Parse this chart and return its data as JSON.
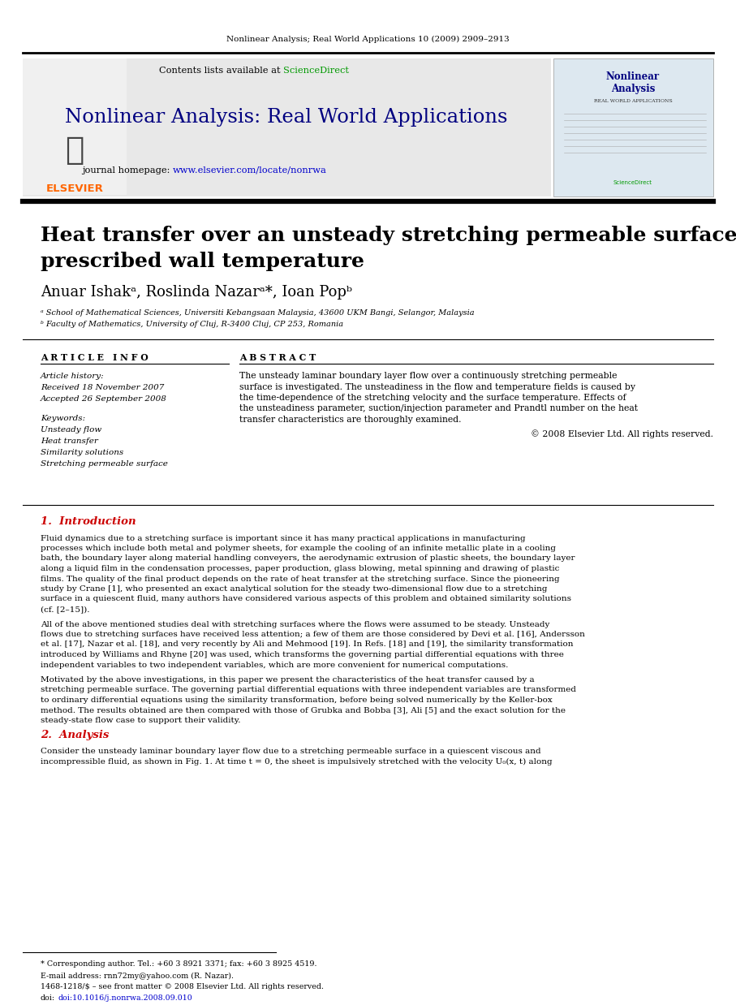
{
  "bg_color": "#ffffff",
  "header_journal": "Nonlinear Analysis; Real World Applications 10 (2009) 2909–2913",
  "journal_title": "Nonlinear Analysis: Real World Applications",
  "contents_text": "Contents lists available at ScienceDirect",
  "journal_url": "www.elsevier.com/locate/nonrwa",
  "journal_homepage_label": "journal homepage: ",
  "elsevier_color": "#ff6600",
  "sciencedirect_color": "#009900",
  "url_color": "#0000cc",
  "header_bg": "#e8e8e8",
  "paper_title_line1": "Heat transfer over an unsteady stretching permeable surface with",
  "paper_title_line2": "prescribed wall temperature",
  "authors": "Anuar Ishakᵃ, Roslinda Nazarᵃ*, Ioan Popᵇ",
  "affil_a": "ᵃ School of Mathematical Sciences, Universiti Kebangsaan Malaysia, 43600 UKM Bangi, Selangor, Malaysia",
  "affil_b": "ᵇ Faculty of Mathematics, University of Cluj, R-3400 Cluj, CP 253, Romania",
  "article_info_header": "A R T I C L E   I N F O",
  "article_history_label": "Article history:",
  "received_text": "Received 18 November 2007",
  "accepted_text": "Accepted 26 September 2008",
  "keywords_label": "Keywords:",
  "kw1": "Unsteady flow",
  "kw2": "Heat transfer",
  "kw3": "Similarity solutions",
  "kw4": "Stretching permeable surface",
  "abstract_header": "A B S T R A C T",
  "abstract_text": "The unsteady laminar boundary layer flow over a continuously stretching permeable\nsurface is investigated. The unsteadiness in the flow and temperature fields is caused by\nthe time-dependence of the stretching velocity and the surface temperature. Effects of\nthe unsteadiness parameter, suction/injection parameter and Prandtl number on the heat\ntransfer characteristics are thoroughly examined.",
  "copyright_text": "© 2008 Elsevier Ltd. All rights reserved.",
  "section1_header": "1.  Introduction",
  "section1_text1": "Fluid dynamics due to a stretching surface is important since it has many practical applications in manufacturing\nprocesses which include both metal and polymer sheets, for example the cooling of an infinite metallic plate in a cooling\nbath, the boundary layer along material handling conveyers, the aerodynamic extrusion of plastic sheets, the boundary layer\nalong a liquid film in the condensation processes, paper production, glass blowing, metal spinning and drawing of plastic\nfilms. The quality of the final product depends on the rate of heat transfer at the stretching surface. Since the pioneering\nstudy by Crane [1], who presented an exact analytical solution for the steady two-dimensional flow due to a stretching\nsurface in a quiescent fluid, many authors have considered various aspects of this problem and obtained similarity solutions\n(cf. [2–15]).",
  "section1_text2": "All of the above mentioned studies deal with stretching surfaces where the flows were assumed to be steady. Unsteady\nflows due to stretching surfaces have received less attention; a few of them are those considered by Devi et al. [16], Andersson\net al. [17], Nazar et al. [18], and very recently by Ali and Mehmood [19]. In Refs. [18] and [19], the similarity transformation\nintroduced by Williams and Rhyne [20] was used, which transforms the governing partial differential equations with three\nindependent variables to two independent variables, which are more convenient for numerical computations.",
  "section1_text3": "Motivated by the above investigations, in this paper we present the characteristics of the heat transfer caused by a\nstretching permeable surface. The governing partial differential equations with three independent variables are transformed\nto ordinary differential equations using the similarity transformation, before being solved numerically by the Keller-box\nmethod. The results obtained are then compared with those of Grubka and Bobba [3], Ali [5] and the exact solution for the\nsteady-state flow case to support their validity.",
  "section2_header": "2.  Analysis",
  "section2_text": "Consider the unsteady laminar boundary layer flow due to a stretching permeable surface in a quiescent viscous and\nincompressible fluid, as shown in Fig. 1. At time t = 0, the sheet is impulsively stretched with the velocity U₀(x, t) along",
  "footnote_star": "* Corresponding author. Tel.: +60 3 8921 3371; fax: +60 3 8925 4519.",
  "footnote_email": "E-mail address: rnn72my@yahoo.com (R. Nazar).",
  "footnote_issn": "1468-1218/$ – see front matter © 2008 Elsevier Ltd. All rights reserved.",
  "footnote_doi": "doi:10.1016/j.nonrwa.2008.09.010",
  "doi_color": "#0000cc",
  "divider_color": "#000000",
  "section_header_color": "#cc0000"
}
